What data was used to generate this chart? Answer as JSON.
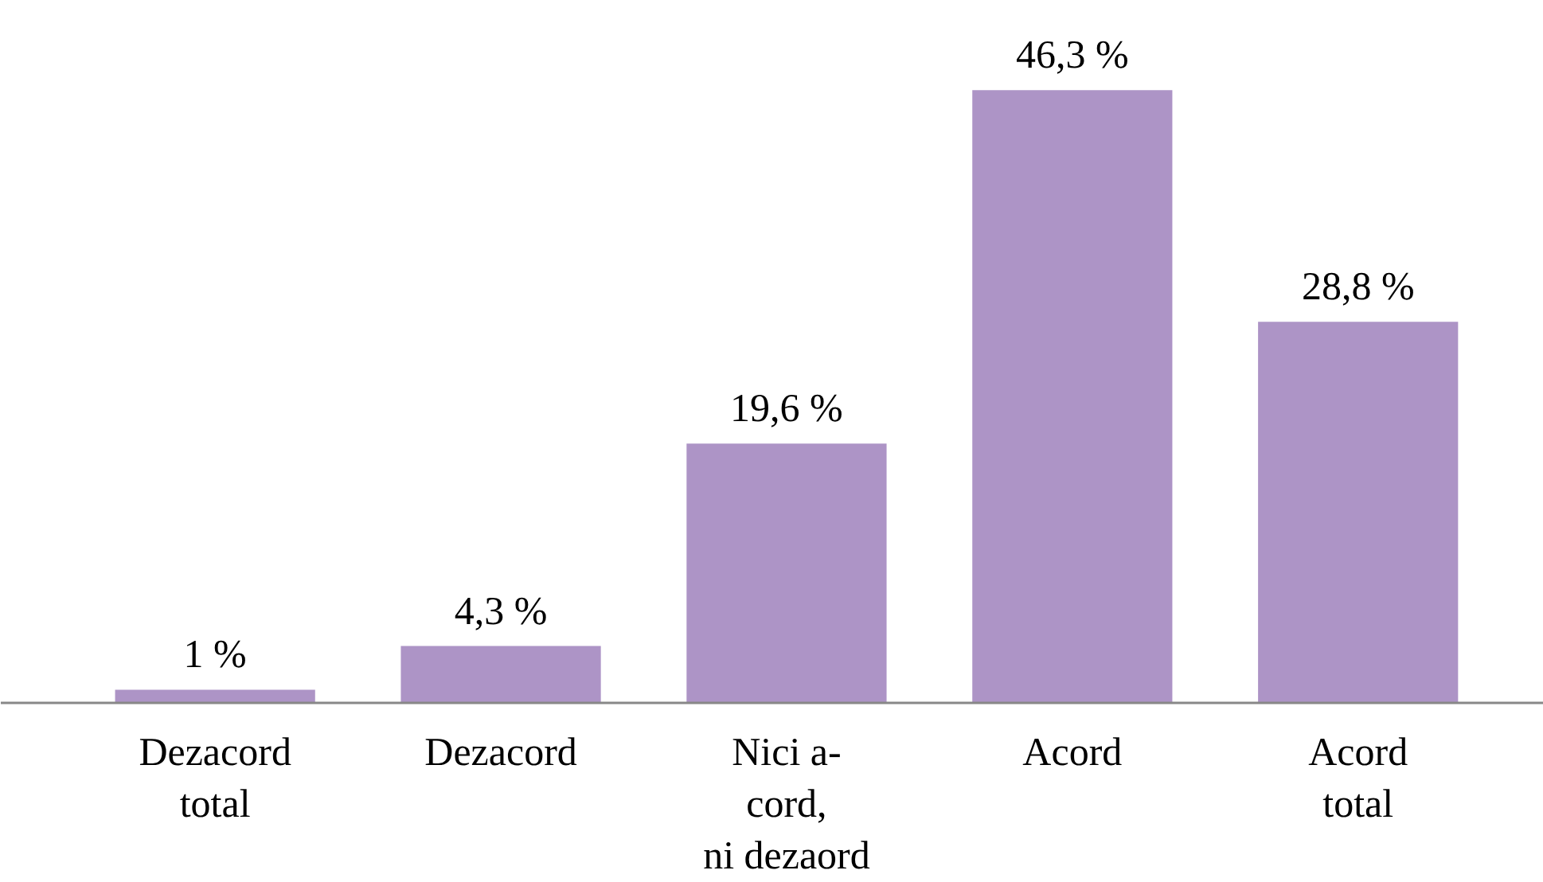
{
  "chart_data": {
    "type": "bar",
    "categories": [
      "Dezacord\ntotal",
      "Dezacord",
      "Nici a-\ncord,\nni dezaord",
      "Acord",
      "Acord\ntotal"
    ],
    "values": [
      1,
      4.3,
      19.6,
      46.3,
      28.8
    ],
    "value_labels": [
      "1 %",
      "4,3 %",
      "19,6 %",
      "46,3 %",
      "28,8 %"
    ],
    "color": "#ad94c6",
    "grid": false
  }
}
